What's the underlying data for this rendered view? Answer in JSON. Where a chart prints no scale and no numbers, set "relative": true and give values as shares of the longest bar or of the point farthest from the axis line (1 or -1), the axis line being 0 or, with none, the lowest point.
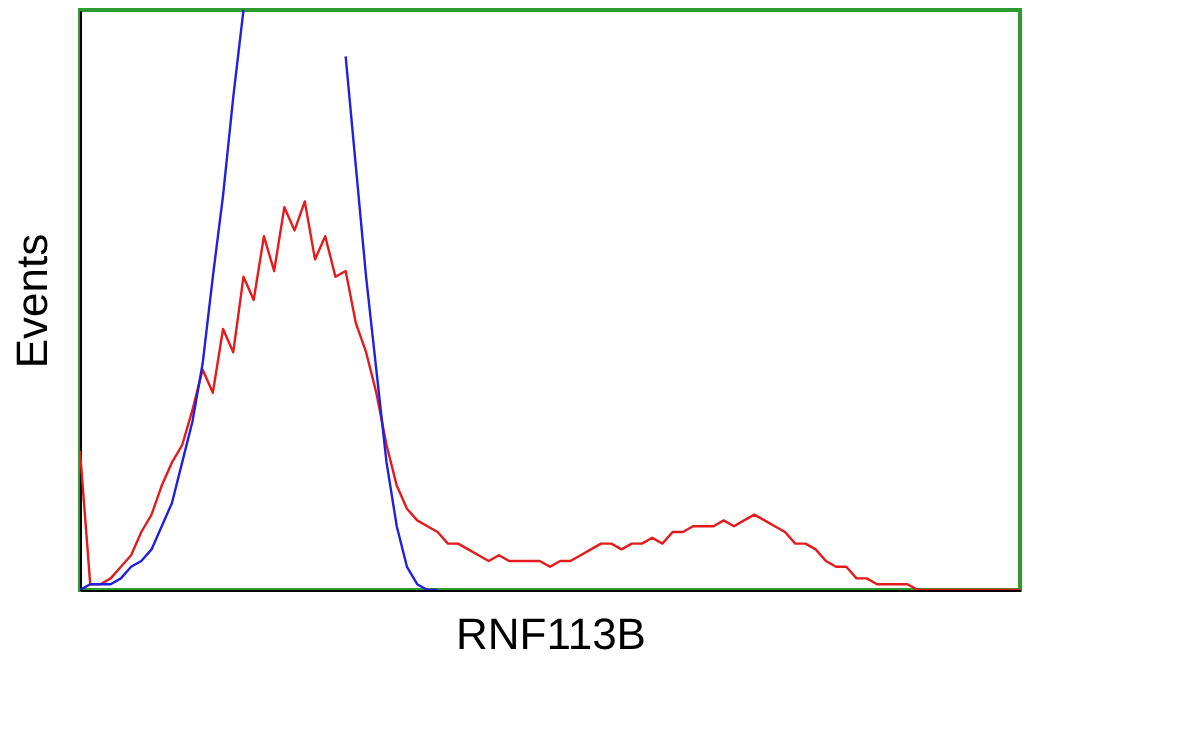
{
  "chart_data": {
    "type": "line",
    "relative": true,
    "xlabel": "RNF113B",
    "ylabel": "Events",
    "categories": [
      null,
      null,
      null,
      null,
      null,
      null,
      null,
      null,
      null,
      null,
      null,
      null,
      null,
      null,
      null,
      null,
      null,
      null,
      null,
      null,
      null,
      null,
      null,
      null,
      null,
      null,
      null,
      null,
      null,
      null,
      null,
      null,
      null,
      null,
      null,
      null,
      null,
      null,
      null,
      null,
      null,
      null,
      null,
      null,
      null,
      null,
      null,
      null,
      null,
      null,
      null,
      null,
      null,
      null,
      null,
      null,
      null,
      null,
      null,
      null,
      null,
      null,
      null,
      null,
      null,
      null,
      null,
      null,
      null,
      null,
      null,
      null,
      null,
      null,
      null,
      null,
      null,
      null,
      null,
      null,
      null,
      null,
      null,
      null,
      null,
      null,
      null,
      null,
      null,
      null,
      null,
      null,
      null
    ],
    "series": [
      {
        "color": "#e41a1c",
        "values": [
          0.24,
          0.01,
          0.01,
          0.02,
          0.04,
          0.06,
          0.1,
          0.13,
          0.18,
          0.22,
          0.25,
          0.31,
          0.38,
          0.34,
          0.45,
          0.41,
          0.54,
          0.5,
          0.61,
          0.55,
          0.66,
          0.62,
          0.67,
          0.57,
          0.61,
          0.54,
          0.55,
          0.46,
          0.41,
          0.34,
          0.25,
          0.18,
          0.14,
          0.12,
          0.11,
          0.1,
          0.08,
          0.08,
          0.07,
          0.06,
          0.05,
          0.06,
          0.05,
          0.05,
          0.05,
          0.05,
          0.04,
          0.05,
          0.05,
          0.06,
          0.07,
          0.08,
          0.08,
          0.07,
          0.08,
          0.08,
          0.09,
          0.08,
          0.1,
          0.1,
          0.11,
          0.11,
          0.11,
          0.12,
          0.11,
          0.12,
          0.13,
          0.12,
          0.11,
          0.1,
          0.08,
          0.08,
          0.07,
          0.05,
          0.04,
          0.04,
          0.02,
          0.02,
          0.01,
          0.01,
          0.01,
          0.01,
          0,
          0,
          0,
          0,
          0,
          0,
          0,
          0,
          0,
          0,
          0
        ]
      },
      {
        "color": "#2020e0",
        "values": [
          0,
          0.01,
          0.01,
          0.01,
          0.02,
          0.04,
          0.05,
          0.07,
          0.11,
          0.15,
          0.22,
          0.29,
          0.39,
          0.54,
          0.68,
          0.85,
          1.0,
          null,
          null,
          null,
          null,
          null,
          null,
          null,
          null,
          null,
          0.92,
          0.73,
          0.54,
          0.38,
          0.22,
          0.11,
          0.04,
          0.01,
          0,
          0,
          null,
          null,
          null,
          null,
          null,
          null,
          null,
          null,
          null,
          null,
          null,
          null,
          null,
          null,
          null,
          null,
          null,
          null,
          null,
          null,
          null,
          null,
          null,
          null,
          null,
          null,
          null,
          null,
          null,
          null,
          null,
          null,
          null,
          null,
          null,
          null,
          null,
          null,
          null,
          null,
          null,
          null,
          null,
          null,
          null,
          null,
          null,
          null,
          null,
          null,
          null,
          null,
          null,
          null,
          null,
          null,
          null
        ]
      }
    ]
  }
}
